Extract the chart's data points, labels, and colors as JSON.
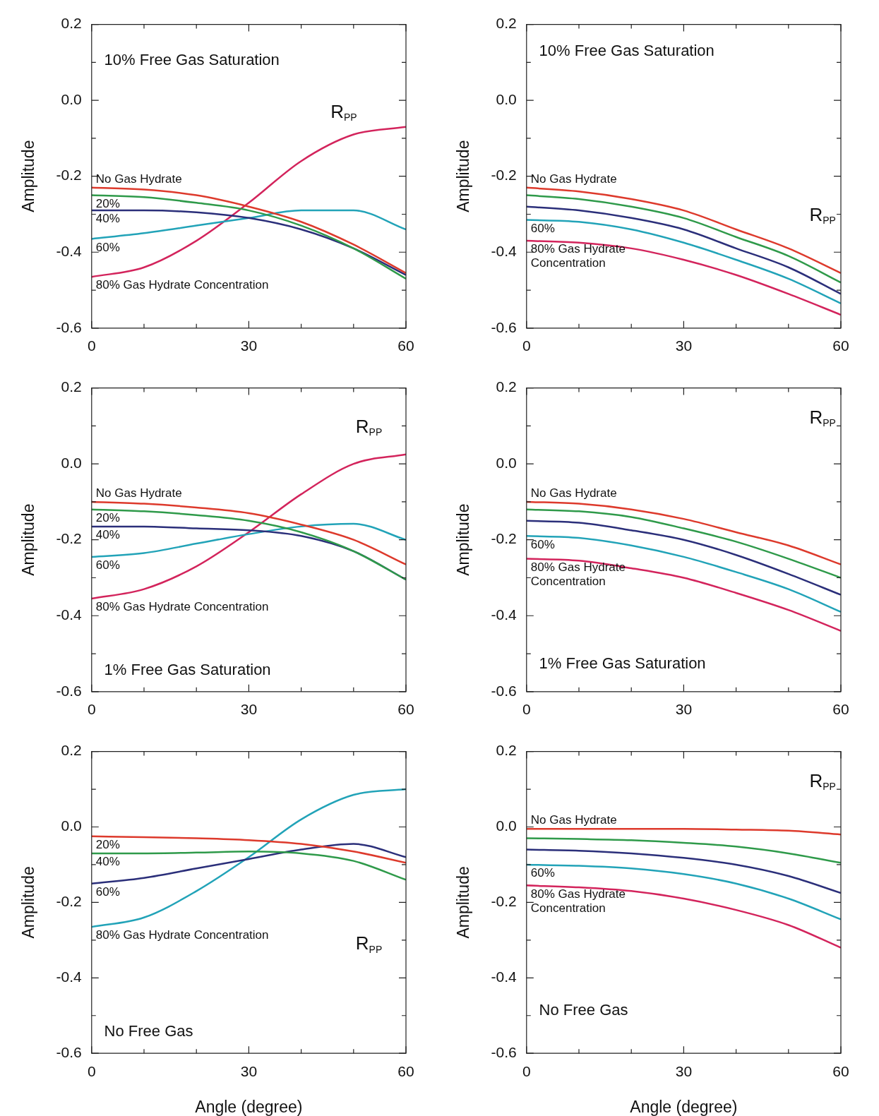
{
  "chart_data": [
    {
      "type": "line",
      "title": "10% Free Gas Saturation",
      "ylabel": "Amplitude",
      "x": [
        0,
        10,
        20,
        30,
        40,
        50,
        60
      ],
      "xlim": [
        0,
        60
      ],
      "xticks": [
        0,
        {
          "value": 10,
          "label": null
        },
        {
          "value": 20,
          "label": null
        },
        30,
        {
          "value": 40,
          "label": null
        },
        {
          "value": 50,
          "label": null
        },
        60
      ],
      "ylim": [
        -0.6,
        0.2
      ],
      "yticks": [
        -0.6,
        {
          "value": -0.5,
          "label": null
        },
        -0.4,
        {
          "value": -0.3,
          "label": null
        },
        -0.2,
        {
          "value": -0.1,
          "label": null
        },
        {
          "value": 0,
          "label": "0.0"
        },
        {
          "value": 0.1,
          "label": null
        },
        0.2
      ],
      "series": [
        {
          "name": "No Gas Hydrate",
          "color": "#dd3a2c",
          "values": [
            -0.23,
            -0.235,
            -0.25,
            -0.28,
            -0.32,
            -0.38,
            -0.455
          ]
        },
        {
          "name": "20%",
          "color": "#2f9a4a",
          "values": [
            -0.25,
            -0.255,
            -0.27,
            -0.29,
            -0.33,
            -0.39,
            -0.47
          ]
        },
        {
          "name": "40%",
          "color": "#2b2f7a",
          "values": [
            -0.29,
            -0.29,
            -0.295,
            -0.31,
            -0.34,
            -0.39,
            -0.46
          ]
        },
        {
          "name": "60%",
          "color": "#22a3b8",
          "values": [
            -0.365,
            -0.35,
            -0.33,
            -0.31,
            -0.29,
            -0.29,
            -0.34
          ]
        },
        {
          "name": "80% Gas Hydrate Concentration",
          "color": "#d3245c",
          "values": [
            -0.465,
            -0.44,
            -0.37,
            -0.27,
            -0.16,
            -0.09,
            -0.07
          ]
        }
      ],
      "annotations": [
        "R$_{PP}$"
      ]
    },
    {
      "type": "line",
      "title": "10% Free Gas Saturation",
      "ylabel": "Amplitude",
      "x": [
        0,
        10,
        20,
        30,
        40,
        50,
        60
      ],
      "xlim": [
        0,
        60
      ],
      "xticks": [
        0,
        {
          "value": 10,
          "label": null
        },
        {
          "value": 20,
          "label": null
        },
        30,
        {
          "value": 40,
          "label": null
        },
        {
          "value": 50,
          "label": null
        },
        60
      ],
      "ylim": [
        -0.6,
        0.2
      ],
      "yticks": [
        -0.6,
        {
          "value": -0.5,
          "label": null
        },
        -0.4,
        {
          "value": -0.3,
          "label": null
        },
        -0.2,
        {
          "value": -0.1,
          "label": null
        },
        {
          "value": 0,
          "label": "0.0"
        },
        {
          "value": 0.1,
          "label": null
        },
        0.2
      ],
      "series": [
        {
          "name": "No Gas Hydrate",
          "color": "#dd3a2c",
          "values": [
            -0.23,
            -0.24,
            -0.26,
            -0.29,
            -0.34,
            -0.39,
            -0.455
          ]
        },
        {
          "color": "#2f9a4a",
          "values": [
            -0.25,
            -0.26,
            -0.28,
            -0.31,
            -0.36,
            -0.41,
            -0.48
          ]
        },
        {
          "color": "#2b2f7a",
          "values": [
            -0.28,
            -0.29,
            -0.31,
            -0.34,
            -0.39,
            -0.44,
            -0.51
          ]
        },
        {
          "name": "60%",
          "color": "#22a3b8",
          "values": [
            -0.315,
            -0.32,
            -0.34,
            -0.375,
            -0.42,
            -0.47,
            -0.535
          ]
        },
        {
          "name": "80% Gas Hydrate Concentration",
          "color": "#d3245c",
          "values": [
            -0.37,
            -0.375,
            -0.39,
            -0.42,
            -0.46,
            -0.51,
            -0.565
          ]
        }
      ],
      "annotations": [
        "R$_{PP}$"
      ]
    },
    {
      "type": "line",
      "title": "1% Free Gas Saturation",
      "ylabel": "Amplitude",
      "x": [
        0,
        10,
        20,
        30,
        40,
        50,
        60
      ],
      "xlim": [
        0,
        60
      ],
      "xticks": [
        0,
        {
          "value": 10,
          "label": null
        },
        {
          "value": 20,
          "label": null
        },
        30,
        {
          "value": 40,
          "label": null
        },
        {
          "value": 50,
          "label": null
        },
        60
      ],
      "ylim": [
        -0.6,
        0.2
      ],
      "yticks": [
        -0.6,
        {
          "value": -0.5,
          "label": null
        },
        -0.4,
        {
          "value": -0.3,
          "label": null
        },
        -0.2,
        {
          "value": -0.1,
          "label": null
        },
        {
          "value": 0,
          "label": "0.0"
        },
        {
          "value": 0.1,
          "label": null
        },
        0.2
      ],
      "series": [
        {
          "name": "No Gas Hydrate",
          "color": "#dd3a2c",
          "values": [
            -0.1,
            -0.105,
            -0.115,
            -0.13,
            -0.16,
            -0.2,
            -0.265
          ]
        },
        {
          "name": "20%",
          "color": "#2f9a4a",
          "values": [
            -0.12,
            -0.125,
            -0.135,
            -0.15,
            -0.18,
            -0.23,
            -0.305
          ]
        },
        {
          "name": "40%",
          "color": "#2b2f7a",
          "values": [
            -0.165,
            -0.165,
            -0.17,
            -0.175,
            -0.19,
            -0.23,
            -0.305
          ]
        },
        {
          "name": "60%",
          "color": "#22a3b8",
          "values": [
            -0.245,
            -0.235,
            -0.21,
            -0.185,
            -0.165,
            -0.158,
            -0.2
          ]
        },
        {
          "name": "80% Gas Hydrate Concentration",
          "color": "#d3245c",
          "values": [
            -0.355,
            -0.33,
            -0.27,
            -0.18,
            -0.08,
            0,
            0.025
          ]
        }
      ],
      "annotations": [
        "R$_{PP}$"
      ]
    },
    {
      "type": "line",
      "title": "1% Free Gas Saturation",
      "ylabel": "Amplitude",
      "x": [
        0,
        10,
        20,
        30,
        40,
        50,
        60
      ],
      "xlim": [
        0,
        60
      ],
      "xticks": [
        0,
        {
          "value": 10,
          "label": null
        },
        {
          "value": 20,
          "label": null
        },
        30,
        {
          "value": 40,
          "label": null
        },
        {
          "value": 50,
          "label": null
        },
        60
      ],
      "ylim": [
        -0.6,
        0.2
      ],
      "yticks": [
        -0.6,
        {
          "value": -0.5,
          "label": null
        },
        -0.4,
        {
          "value": -0.3,
          "label": null
        },
        -0.2,
        {
          "value": -0.1,
          "label": null
        },
        {
          "value": 0,
          "label": "0.0"
        },
        {
          "value": 0.1,
          "label": null
        },
        0.2
      ],
      "series": [
        {
          "name": "No Gas Hydrate",
          "color": "#dd3a2c",
          "values": [
            -0.1,
            -0.105,
            -0.12,
            -0.145,
            -0.18,
            -0.215,
            -0.265
          ]
        },
        {
          "color": "#2f9a4a",
          "values": [
            -0.12,
            -0.125,
            -0.14,
            -0.17,
            -0.205,
            -0.25,
            -0.3
          ]
        },
        {
          "color": "#2b2f7a",
          "values": [
            -0.15,
            -0.155,
            -0.175,
            -0.2,
            -0.24,
            -0.29,
            -0.345
          ]
        },
        {
          "name": "60%",
          "color": "#22a3b8",
          "values": [
            -0.19,
            -0.195,
            -0.215,
            -0.245,
            -0.285,
            -0.33,
            -0.39
          ]
        },
        {
          "name": "80% Gas Hydrate Concentration",
          "color": "#d3245c",
          "values": [
            -0.25,
            -0.255,
            -0.275,
            -0.3,
            -0.34,
            -0.385,
            -0.44
          ]
        }
      ],
      "annotations": [
        "R$_{PP}$"
      ]
    },
    {
      "type": "line",
      "title": "No Free Gas",
      "xlabel": "Angle (degree)",
      "ylabel": "Amplitude",
      "x": [
        0,
        10,
        20,
        30,
        40,
        50,
        60
      ],
      "xlim": [
        0,
        60
      ],
      "xticks": [
        0,
        {
          "value": 10,
          "label": null
        },
        {
          "value": 20,
          "label": null
        },
        30,
        {
          "value": 40,
          "label": null
        },
        {
          "value": 50,
          "label": null
        },
        60
      ],
      "ylim": [
        -0.6,
        0.2
      ],
      "yticks": [
        -0.6,
        {
          "value": -0.5,
          "label": null
        },
        -0.4,
        {
          "value": -0.3,
          "label": null
        },
        -0.2,
        {
          "value": -0.1,
          "label": null
        },
        {
          "value": 0,
          "label": "0.0"
        },
        {
          "value": 0.1,
          "label": null
        },
        0.2
      ],
      "series": [
        {
          "name": "20%",
          "color": "#dd3a2c",
          "values": [
            -0.025,
            -0.027,
            -0.03,
            -0.035,
            -0.045,
            -0.065,
            -0.095
          ]
        },
        {
          "name": "40%",
          "color": "#2f9a4a",
          "values": [
            -0.07,
            -0.07,
            -0.068,
            -0.065,
            -0.07,
            -0.09,
            -0.14
          ]
        },
        {
          "name": "60%",
          "color": "#2b2f7a",
          "values": [
            -0.15,
            -0.135,
            -0.11,
            -0.085,
            -0.06,
            -0.045,
            -0.08
          ]
        },
        {
          "name": "80% Gas Hydrate Concentration",
          "color": "#22a3b8",
          "values": [
            -0.265,
            -0.24,
            -0.17,
            -0.08,
            0.02,
            0.085,
            0.1
          ]
        }
      ],
      "annotations": [
        "R$_{PP}$"
      ]
    },
    {
      "type": "line",
      "title": "No Free Gas",
      "xlabel": "Angle (degree)",
      "ylabel": "Amplitude",
      "x": [
        0,
        10,
        20,
        30,
        40,
        50,
        60
      ],
      "xlim": [
        0,
        60
      ],
      "xticks": [
        0,
        {
          "value": 10,
          "label": null
        },
        {
          "value": 20,
          "label": null
        },
        30,
        {
          "value": 40,
          "label": null
        },
        {
          "value": 50,
          "label": null
        },
        60
      ],
      "ylim": [
        -0.6,
        0.2
      ],
      "yticks": [
        -0.6,
        {
          "value": -0.5,
          "label": null
        },
        -0.4,
        {
          "value": -0.3,
          "label": null
        },
        -0.2,
        {
          "value": -0.1,
          "label": null
        },
        {
          "value": 0,
          "label": "0.0"
        },
        {
          "value": 0.1,
          "label": null
        },
        0.2
      ],
      "series": [
        {
          "name": "No Gas Hydrate",
          "color": "#dd3a2c",
          "values": [
            -0.005,
            -0.005,
            -0.005,
            -0.005,
            -0.007,
            -0.01,
            -0.02
          ]
        },
        {
          "color": "#2f9a4a",
          "values": [
            -0.03,
            -0.032,
            -0.035,
            -0.042,
            -0.052,
            -0.07,
            -0.095
          ]
        },
        {
          "color": "#2b2f7a",
          "values": [
            -0.06,
            -0.063,
            -0.07,
            -0.082,
            -0.1,
            -0.13,
            -0.175
          ]
        },
        {
          "name": "60%",
          "color": "#22a3b8",
          "values": [
            -0.1,
            -0.103,
            -0.11,
            -0.125,
            -0.15,
            -0.19,
            -0.245
          ]
        },
        {
          "name": "80% Gas Hydrate Concentration",
          "color": "#d3245c",
          "values": [
            -0.155,
            -0.16,
            -0.17,
            -0.19,
            -0.22,
            -0.26,
            -0.32
          ]
        }
      ],
      "annotations": [
        "R$_{PP}$"
      ]
    }
  ]
}
